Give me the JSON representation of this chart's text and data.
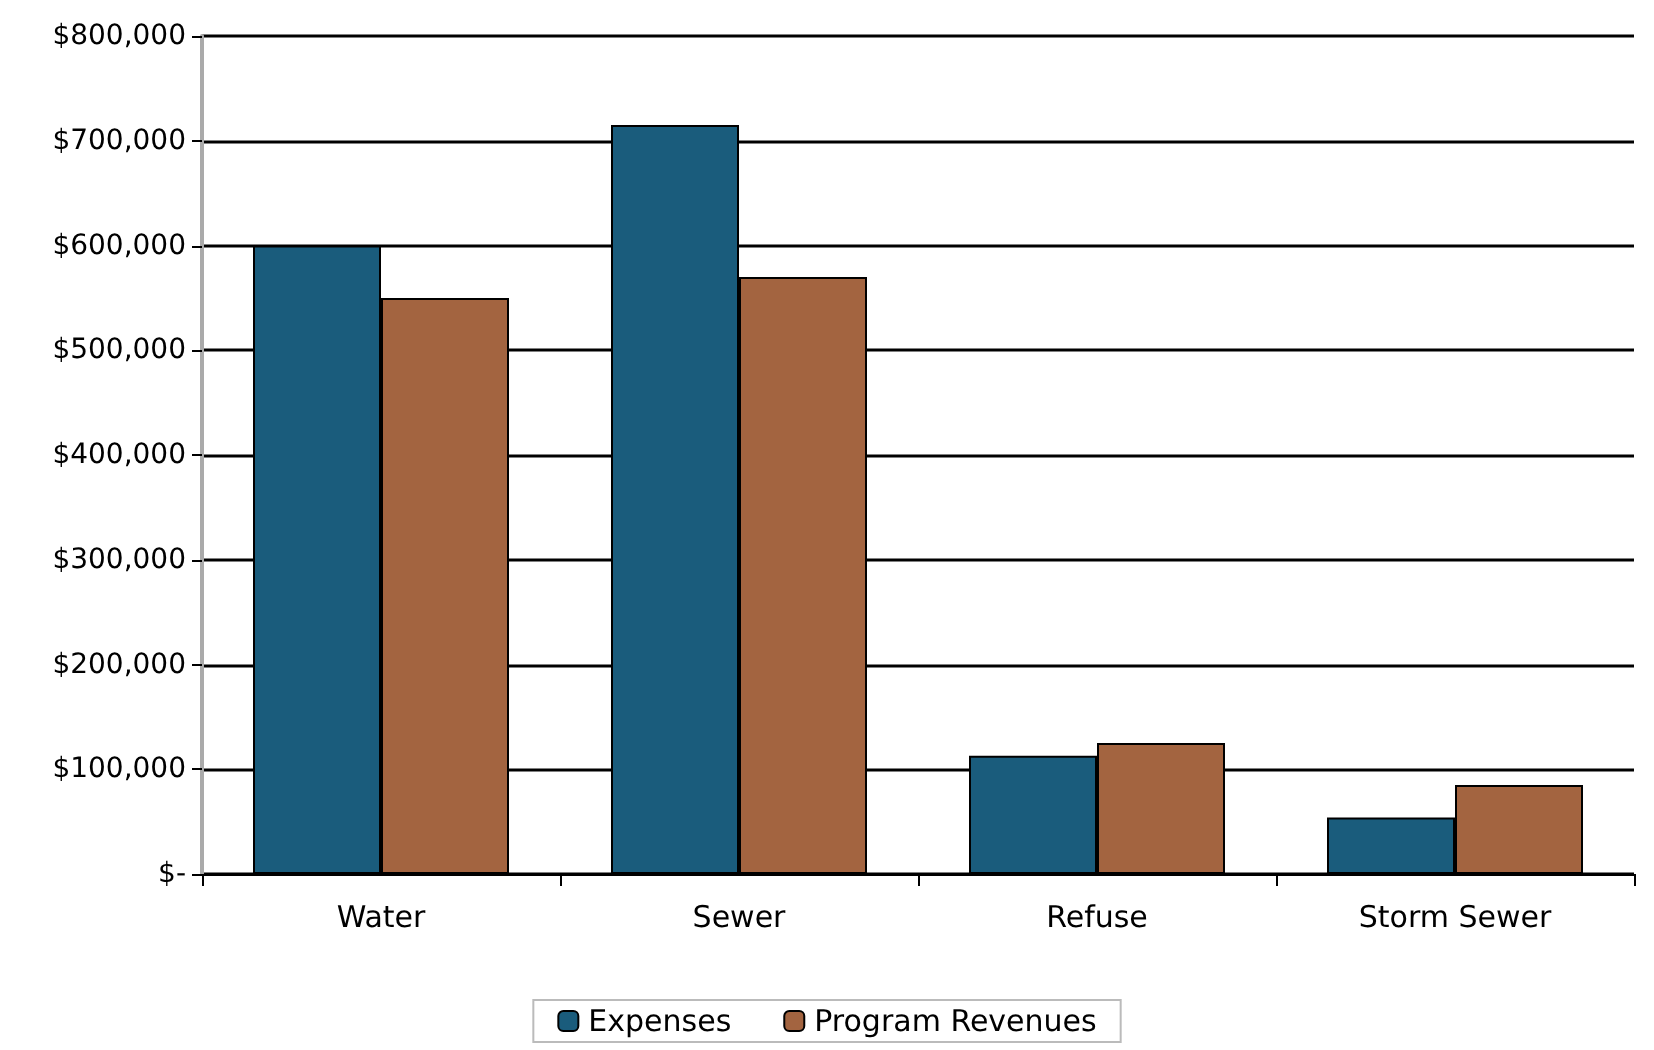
{
  "chart_data": {
    "type": "bar",
    "categories": [
      "Water",
      "Sewer",
      "Refuse",
      "Storm Sewer"
    ],
    "series": [
      {
        "name": "Expenses",
        "color": "#1a5c7c",
        "values": [
          600000,
          715000,
          113000,
          54000
        ]
      },
      {
        "name": "Program Revenues",
        "color": "#a36440",
        "values": [
          550000,
          570000,
          125000,
          85000
        ]
      }
    ],
    "ylim": [
      0,
      800000
    ],
    "yticks": [
      {
        "value": 0,
        "label": "$-"
      },
      {
        "value": 100000,
        "label": "$100,000"
      },
      {
        "value": 200000,
        "label": "$200,000"
      },
      {
        "value": 300000,
        "label": "$300,000"
      },
      {
        "value": 400000,
        "label": "$400,000"
      },
      {
        "value": 500000,
        "label": "$500,000"
      },
      {
        "value": 600000,
        "label": "$600,000"
      },
      {
        "value": 700000,
        "label": "$700,000"
      },
      {
        "value": 800000,
        "label": "$800,000"
      }
    ],
    "grid": "y",
    "legend": "bottom"
  }
}
